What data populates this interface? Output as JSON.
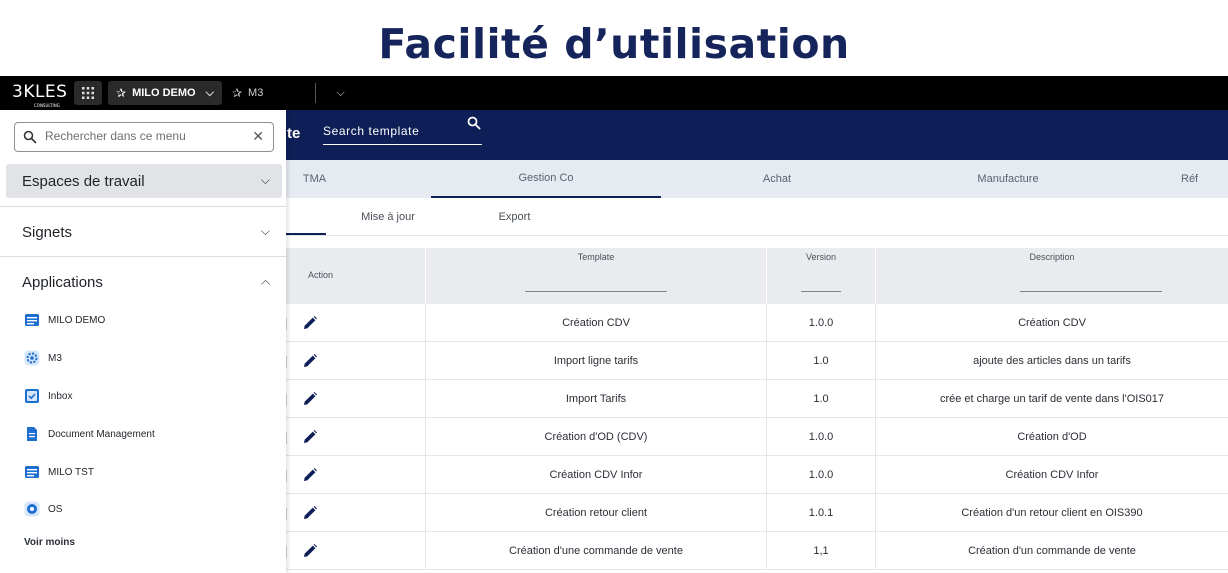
{
  "slide": {
    "title": "Facilité d’utilisation"
  },
  "topbar": {
    "logo_text": "3KLES",
    "logo_sub": "CONSULTING",
    "workspace_label": "MILO DEMO",
    "second_workspace_label": "M3"
  },
  "header": {
    "title_fragment": "te",
    "search_placeholder": "Search template"
  },
  "tabs": [
    "TMA",
    "Gestion Co",
    "Achat",
    "Manufacture",
    "Réf"
  ],
  "active_tab": "Gestion Co",
  "subtabs": [
    "Mise à jour",
    "Export"
  ],
  "table": {
    "columns": [
      "Action",
      "Template",
      "Version",
      "Description"
    ],
    "rows": [
      {
        "template": "Création CDV",
        "version": "1.0.0",
        "description": "Création CDV"
      },
      {
        "template": "Import ligne tarifs",
        "version": "1.0",
        "description": "ajoute des articles dans un tarifs"
      },
      {
        "template": "Import Tarifs",
        "version": "1.0",
        "description": "crée et charge un tarif de vente dans l'OIS017"
      },
      {
        "template": "Création d'OD (CDV)",
        "version": "1.0.0",
        "description": "Création d'OD"
      },
      {
        "template": "Création CDV Infor",
        "version": "1.0.0",
        "description": "Création CDV Infor"
      },
      {
        "template": "Création retour client",
        "version": "1.0.1",
        "description": "Création d'un retour client en OIS390"
      },
      {
        "template": "Création d'une commande de vente",
        "version": "1,1",
        "description": "Création d'un commande de vente"
      }
    ]
  },
  "menu": {
    "search_placeholder": "Rechercher dans ce menu",
    "sections": [
      "Espaces de travail",
      "Signets",
      "Applications"
    ],
    "apps": [
      {
        "label": "MILO DEMO",
        "icon": "app-window-icon"
      },
      {
        "label": "M3",
        "icon": "gear-app-icon"
      },
      {
        "label": "Inbox",
        "icon": "inbox-check-icon"
      },
      {
        "label": "Document Management",
        "icon": "document-icon"
      },
      {
        "label": "MILO TST",
        "icon": "app-window-icon"
      },
      {
        "label": "OS",
        "icon": "os-gear-icon"
      }
    ],
    "voir_moins": "Voir moins"
  },
  "colors": {
    "navy": "#0e1e56",
    "title_navy": "#16245c",
    "tab_bg": "#e6ebf2",
    "app_icon_blue": "#1f6fd1"
  }
}
